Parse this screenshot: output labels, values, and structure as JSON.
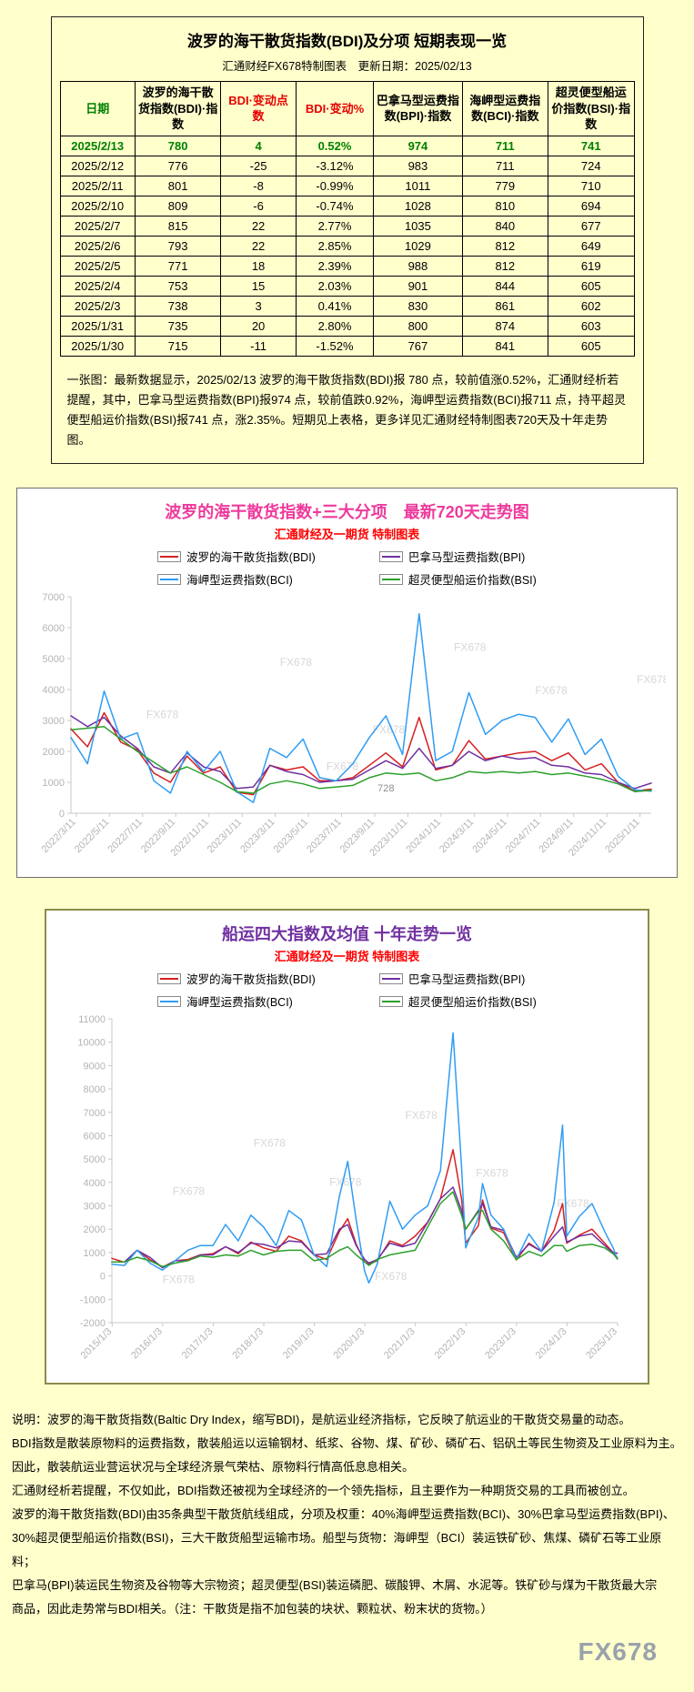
{
  "page": {
    "watermark": "FX678"
  },
  "colors": {
    "page-bg": "#ffffcc",
    "table-green": "#008000",
    "table-red": "#e60000",
    "chart1-title": "#ee3a9c",
    "chart2-title": "#7030a0",
    "subtitle-red": "#ff0000",
    "panel2-border": "#8b8b4b",
    "axis-gray": "#b4b4b4",
    "watermark-gray": "#d7d7d7",
    "page-watermark-gray": "#99a2ab"
  },
  "table_section": {
    "title": "波罗的海干散货指数(BDI)及分项 短期表现一览",
    "source_line": "汇通财经FX678特制图表　更新日期：2025/02/13",
    "columns": [
      "日期",
      "波罗的海干散货指数(BDI)·指数",
      "BDI·变动点数",
      "BDI·变动%",
      "巴拿马型运费指数(BPI)·指数",
      "海岬型运费指数(BCI)·指数",
      "超灵便型船运价指数(BSI)·指数"
    ],
    "rows": [
      [
        "2025/2/13",
        "780",
        "4",
        "0.52%",
        "974",
        "711",
        "741"
      ],
      [
        "2025/2/12",
        "776",
        "-25",
        "-3.12%",
        "983",
        "711",
        "724"
      ],
      [
        "2025/2/11",
        "801",
        "-8",
        "-0.99%",
        "1011",
        "779",
        "710"
      ],
      [
        "2025/2/10",
        "809",
        "-6",
        "-0.74%",
        "1028",
        "810",
        "694"
      ],
      [
        "2025/2/7",
        "815",
        "22",
        "2.77%",
        "1035",
        "840",
        "677"
      ],
      [
        "2025/2/6",
        "793",
        "22",
        "2.85%",
        "1029",
        "812",
        "649"
      ],
      [
        "2025/2/5",
        "771",
        "18",
        "2.39%",
        "988",
        "812",
        "619"
      ],
      [
        "2025/2/4",
        "753",
        "15",
        "2.03%",
        "901",
        "844",
        "605"
      ],
      [
        "2025/2/3",
        "738",
        "3",
        "0.41%",
        "830",
        "861",
        "602"
      ],
      [
        "2025/1/31",
        "735",
        "20",
        "2.80%",
        "800",
        "874",
        "603"
      ],
      [
        "2025/1/30",
        "715",
        "-11",
        "-1.52%",
        "767",
        "841",
        "605"
      ]
    ],
    "note": "一张图：最新数据显示，2025/02/13 波罗的海干散货指数(BDI)报 780 点，较前值涨0.52%，汇通财经析若提醒，其中，巴拿马型运费指数(BPI)报974 点，较前值跌0.92%，海岬型运费指数(BCI)报711 点，持平超灵便型船运价指数(BSI)报741 点，涨2.35%。短期见上表格，更多详见汇通财经特制图表720天及十年走势图。"
  },
  "chart_data": [
    {
      "type": "line",
      "title": "波罗的海干散货指数+三大分项　最新720天走势图",
      "subtitle": "汇通财经及一期货  特制图表",
      "title_color": "#ee3a9c",
      "ylim": [
        0,
        7000
      ],
      "ystep": 1000,
      "grid": false,
      "legend_position": "top",
      "x": [
        "2022/3",
        "2022/4",
        "2022/5",
        "2022/6",
        "2022/7",
        "2022/8",
        "2022/9",
        "2022/10",
        "2022/11",
        "2022/12",
        "2023/1",
        "2023/2",
        "2023/3",
        "2023/4",
        "2023/5",
        "2023/6",
        "2023/7",
        "2023/8",
        "2023/9",
        "2023/10",
        "2023/11",
        "2023/12",
        "2024/1",
        "2024/2",
        "2024/3",
        "2024/4",
        "2024/5",
        "2024/6",
        "2024/7",
        "2024/8",
        "2024/9",
        "2024/10",
        "2024/11",
        "2024/12",
        "2025/1",
        "2025/2"
      ],
      "xticks": [
        "2022/3/11",
        "2022/5/11",
        "2022/7/11",
        "2022/9/11",
        "2022/11/11",
        "2023/1/11",
        "2023/3/11",
        "2023/5/11",
        "2023/7/11",
        "2023/9/11",
        "2023/11/11",
        "2024/1/11",
        "2024/3/11",
        "2024/5/11",
        "2024/7/11",
        "2024/9/11",
        "2024/11/11",
        "2025/1/11"
      ],
      "series": [
        {
          "name": "波罗的海干散货指数(BDI)",
          "color": "#d62020",
          "values": [
            2730,
            2150,
            3250,
            2300,
            2050,
            1300,
            1000,
            1850,
            1300,
            1500,
            680,
            600,
            1550,
            1400,
            1500,
            1050,
            1050,
            1150,
            1550,
            1950,
            1500,
            3100,
            1400,
            1550,
            2350,
            1750,
            1850,
            1950,
            2000,
            1700,
            1950,
            1400,
            1600,
            1000,
            720,
            780
          ]
        },
        {
          "name": "巴拿马型运费指数(BPI)",
          "color": "#7030a0",
          "values": [
            3150,
            2800,
            3100,
            2500,
            2100,
            1500,
            1300,
            1950,
            1500,
            1350,
            800,
            850,
            1550,
            1350,
            1250,
            1000,
            1050,
            1100,
            1400,
            1700,
            1450,
            2100,
            1450,
            1550,
            2000,
            1700,
            1850,
            1750,
            1800,
            1550,
            1500,
            1300,
            1250,
            1000,
            800,
            974
          ]
        },
        {
          "name": "海岬型运费指数(BCI)",
          "color": "#2f9cf4",
          "values": [
            2450,
            1600,
            3950,
            2400,
            2600,
            1050,
            650,
            2000,
            1350,
            2000,
            700,
            350,
            2100,
            1800,
            2400,
            1150,
            1050,
            1600,
            2450,
            3150,
            1900,
            6450,
            1700,
            2000,
            3900,
            2550,
            3000,
            3200,
            3100,
            2300,
            3050,
            1900,
            2400,
            1200,
            760,
            711
          ]
        },
        {
          "name": "超灵便型船运价指数(BSI)",
          "color": "#2ca02c",
          "values": [
            2700,
            2750,
            2800,
            2400,
            2000,
            1650,
            1300,
            1500,
            1250,
            1000,
            700,
            650,
            950,
            1050,
            950,
            800,
            850,
            900,
            1150,
            1300,
            1250,
            1300,
            1050,
            1150,
            1350,
            1300,
            1350,
            1300,
            1350,
            1250,
            1300,
            1200,
            1100,
            950,
            700,
            741
          ]
        }
      ],
      "annotations": [
        {
          "text": "728",
          "x": "2023/10",
          "y": 700
        }
      ],
      "watermark_text": "FX678",
      "watermarks": [
        [
          0.13,
          0.56
        ],
        [
          0.36,
          0.32
        ],
        [
          0.52,
          0.63
        ],
        [
          0.66,
          0.25
        ],
        [
          0.8,
          0.45
        ],
        [
          0.975,
          0.4
        ],
        [
          0.44,
          0.8
        ]
      ]
    },
    {
      "type": "line",
      "title": "船运四大指数及均值 十年走势一览",
      "subtitle": "汇通财经及一期货 特制图表",
      "title_color": "#7030a0",
      "ylim": [
        -2000,
        11000
      ],
      "ystep": 1000,
      "grid": false,
      "legend_position": "top",
      "x": [
        "2015/1",
        "2015/4",
        "2015/7",
        "2015/10",
        "2016/1",
        "2016/4",
        "2016/7",
        "2016/10",
        "2017/1",
        "2017/4",
        "2017/7",
        "2017/10",
        "2018/1",
        "2018/4",
        "2018/7",
        "2018/10",
        "2019/1",
        "2019/4",
        "2019/7",
        "2019/9",
        "2019/11",
        "2020/1",
        "2020/2",
        "2020/4",
        "2020/7",
        "2020/10",
        "2021/1",
        "2021/4",
        "2021/7",
        "2021/10",
        "2021/12",
        "2022/1",
        "2022/4",
        "2022/5",
        "2022/7",
        "2022/10",
        "2023/1",
        "2023/4",
        "2023/7",
        "2023/10",
        "2023/12",
        "2024/1",
        "2024/4",
        "2024/7",
        "2024/10",
        "2024/12",
        "2025/1"
      ],
      "xticks": [
        "2015/1/3",
        "2016/1/3",
        "2017/1/3",
        "2018/1/3",
        "2019/1/3",
        "2020/1/3",
        "2021/1/3",
        "2022/1/3",
        "2023/1/3",
        "2024/1/3",
        "2025/1/3"
      ],
      "series": [
        {
          "name": "波罗的海干散货指数(BDI)",
          "color": "#d62020",
          "values": [
            750,
            580,
            1100,
            700,
            370,
            650,
            700,
            900,
            950,
            1250,
            950,
            1450,
            1200,
            1050,
            1700,
            1500,
            900,
            700,
            1900,
            2450,
            1350,
            600,
            500,
            650,
            1500,
            1300,
            1700,
            2300,
            3300,
            5400,
            3300,
            1400,
            2150,
            3250,
            2050,
            1850,
            680,
            1400,
            1050,
            1950,
            3100,
            1400,
            1750,
            2000,
            1400,
            1000,
            780
          ]
        },
        {
          "name": "巴拿马型运费指数(BPI)",
          "color": "#7030a0",
          "values": [
            600,
            600,
            1100,
            800,
            350,
            650,
            650,
            900,
            900,
            1250,
            1000,
            1400,
            1350,
            1200,
            1500,
            1450,
            900,
            950,
            2000,
            2200,
            1300,
            700,
            550,
            700,
            1400,
            1250,
            1400,
            2300,
            3300,
            3800,
            2800,
            2000,
            2800,
            3100,
            2100,
            1950,
            800,
            1350,
            1050,
            1700,
            2100,
            1450,
            1700,
            1800,
            1300,
            1000,
            974
          ]
        },
        {
          "name": "海岬型运费指数(BCI)",
          "color": "#2f9cf4",
          "values": [
            500,
            450,
            1100,
            550,
            250,
            650,
            1100,
            1300,
            1300,
            2200,
            1500,
            2600,
            2100,
            1300,
            2800,
            2400,
            900,
            400,
            3400,
            4900,
            2400,
            200,
            -300,
            500,
            3200,
            2000,
            2600,
            3000,
            4500,
            10400,
            4700,
            1200,
            2500,
            3950,
            2600,
            2000,
            700,
            1800,
            1050,
            3150,
            6450,
            1700,
            2550,
            3100,
            1900,
            1200,
            711
          ]
        },
        {
          "name": "超灵便型船运价指数(BSI)",
          "color": "#2ca02c",
          "values": [
            600,
            600,
            800,
            650,
            400,
            550,
            650,
            850,
            800,
            900,
            850,
            1100,
            900,
            1050,
            1100,
            1100,
            650,
            750,
            1100,
            1250,
            900,
            600,
            450,
            700,
            900,
            1000,
            1100,
            2100,
            3100,
            3600,
            2600,
            2000,
            2750,
            2800,
            2000,
            1500,
            700,
            1050,
            850,
            1300,
            1300,
            1050,
            1300,
            1350,
            1200,
            950,
            741
          ]
        }
      ],
      "annotations": [],
      "watermark_text": "FX678",
      "watermarks": [
        [
          0.12,
          0.58
        ],
        [
          0.28,
          0.42
        ],
        [
          0.43,
          0.55
        ],
        [
          0.58,
          0.33
        ],
        [
          0.72,
          0.52
        ],
        [
          0.88,
          0.62
        ],
        [
          0.1,
          0.87
        ],
        [
          0.52,
          0.86
        ]
      ]
    }
  ],
  "explanation": {
    "lines": [
      "说明：波罗的海干散货指数(Baltic Dry Index，缩写BDI)，是航运业经济指标，它反映了航运业的干散货交易量的动态。",
      "BDI指数是散装原物料的运费指数，散装船运以运输钢材、纸浆、谷物、煤、矿砂、磷矿石、铝矾土等民生物资及工业原料为主。",
      "因此，散装航运业营运状况与全球经济景气荣枯、原物料行情高低息息相关。",
      "汇通财经析若提醒，不仅如此，BDI指数还被视为全球经济的一个领先指标，且主要作为一种期货交易的工具而被创立。",
      "波罗的海干散货指数(BDI)由35条典型干散货航线组成，分项及权重：40%海岬型运费指数(BCI)、30%巴拿马型运费指数(BPI)、",
      "30%超灵便型船运价指数(BSI)，三大干散货船型运输市场。船型与货物：海岬型（BCI）装运铁矿砂、焦煤、磷矿石等工业原料；",
      "巴拿马(BPI)装运民生物资及谷物等大宗物资；超灵便型(BSI)装运磷肥、碳酸钾、木屑、水泥等。铁矿砂与煤为干散货最大宗",
      "商品，因此走势常与BDI相关。（注：干散货是指不加包装的块状、颗粒状、粉末状的货物。）"
    ]
  }
}
